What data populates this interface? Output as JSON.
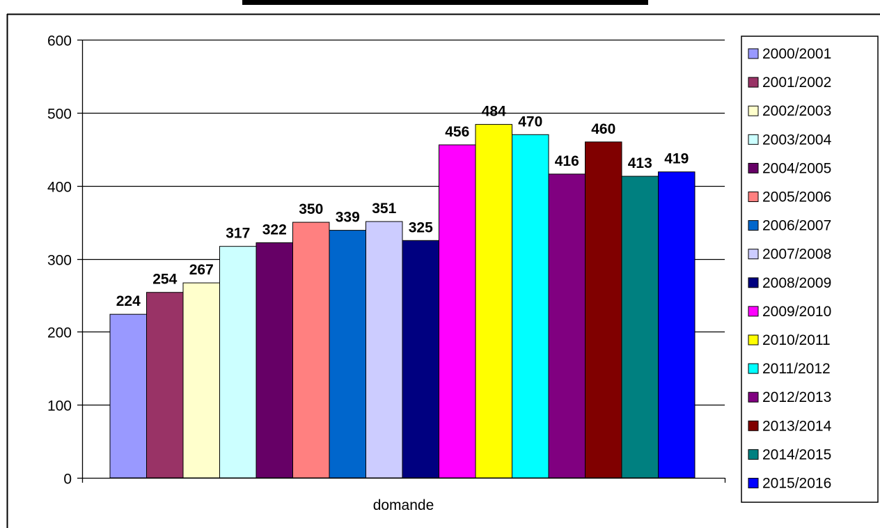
{
  "chart_data": {
    "type": "bar",
    "title": "",
    "xlabel": "",
    "ylabel": "",
    "categories": [
      "domande"
    ],
    "ylim": [
      0,
      600
    ],
    "yticks": [
      0,
      100,
      200,
      300,
      400,
      500,
      600
    ],
    "grid": true,
    "legend_position": "right",
    "series": [
      {
        "name": "2000/2001",
        "value": 224,
        "color": "#9999FF"
      },
      {
        "name": "2001/2002",
        "value": 254,
        "color": "#993366"
      },
      {
        "name": "2002/2003",
        "value": 267,
        "color": "#FFFFCC"
      },
      {
        "name": "2003/2004",
        "value": 317,
        "color": "#CCFFFF"
      },
      {
        "name": "2004/2005",
        "value": 322,
        "color": "#660066"
      },
      {
        "name": "2005/2006",
        "value": 350,
        "color": "#FF8080"
      },
      {
        "name": "2006/2007",
        "value": 339,
        "color": "#0066CC"
      },
      {
        "name": "2007/2008",
        "value": 351,
        "color": "#CCCCFF"
      },
      {
        "name": "2008/2009",
        "value": 325,
        "color": "#000080"
      },
      {
        "name": "2009/2010",
        "value": 456,
        "color": "#FF00FF"
      },
      {
        "name": "2010/2011",
        "value": 484,
        "color": "#FFFF00"
      },
      {
        "name": "2011/2012",
        "value": 470,
        "color": "#00FFFF"
      },
      {
        "name": "2012/2013",
        "value": 416,
        "color": "#800080"
      },
      {
        "name": "2013/2014",
        "value": 460,
        "color": "#800000"
      },
      {
        "name": "2014/2015",
        "value": 413,
        "color": "#008080"
      },
      {
        "name": "2015/2016",
        "value": 419,
        "color": "#0000FF"
      }
    ]
  }
}
